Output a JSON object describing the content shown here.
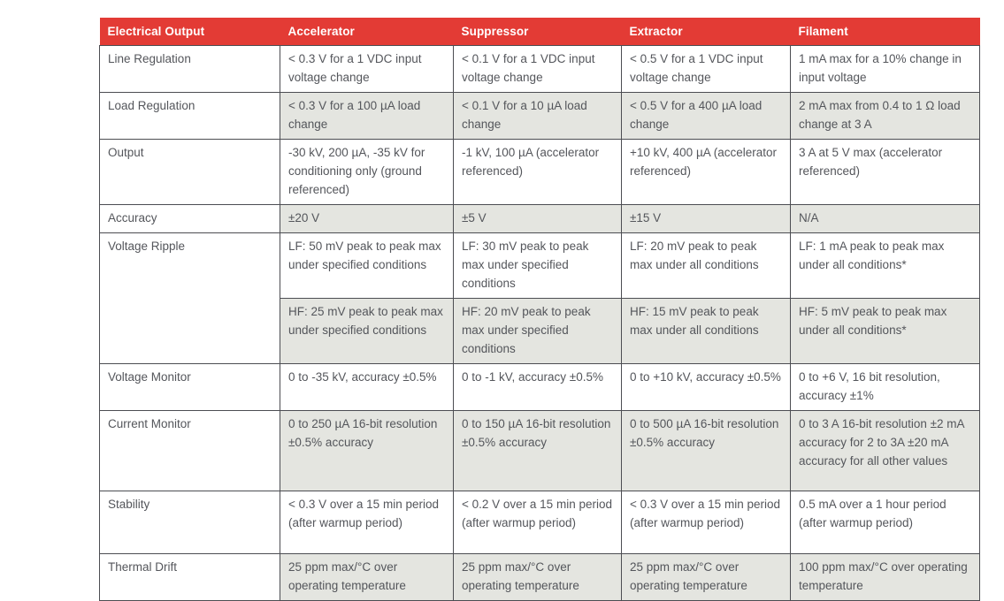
{
  "colors": {
    "header_bg": "#e33b35",
    "header_text": "#ffffff",
    "row_alt_bg": "#e4e5e0",
    "border": "#4c4d52",
    "text": "#54565b"
  },
  "table": {
    "columns": [
      "Electrical Output",
      "Accelerator",
      "Suppressor",
      "Extractor",
      "Filament"
    ],
    "rows": [
      {
        "label": "Line Regulation",
        "cells": [
          "< 0.3 V for a 1 VDC input voltage change",
          "< 0.1 V for a 1 VDC input voltage change",
          "< 0.5 V for a 1 VDC input voltage change",
          "1 mA max for a 10% change in input voltage"
        ]
      },
      {
        "label": "Load Regulation",
        "cells": [
          "< 0.3 V for a 100 µA load change",
          "< 0.1 V for a 10 µA load change",
          "< 0.5 V for a 400 µA load change",
          "2 mA max from 0.4 to 1 Ω load change at 3 A"
        ]
      },
      {
        "label": "Output",
        "cells": [
          "-30 kV, 200 µA, -35 kV for conditioning only (ground referenced)",
          "-1 kV, 100 µA (accelerator referenced)",
          "+10 kV, 400 µA (accelerator referenced)",
          "3 A at 5 V max (accelerator referenced)"
        ]
      },
      {
        "label": "Accuracy",
        "cells": [
          "±20 V",
          "±5 V",
          "±15 V",
          "N/A"
        ]
      },
      {
        "label": "Voltage Ripple",
        "subrows": {
          "lf": [
            "LF: 50 mV peak to peak max under specified conditions",
            "LF: 30 mV peak to peak max under specified conditions",
            "LF: 20 mV peak to peak max under all conditions",
            "LF: 1 mA peak to peak max under all conditions*"
          ],
          "hf": [
            "HF: 25 mV peak to peak max under specified conditions",
            "HF: 20 mV peak to peak max under specified conditions",
            "HF: 15 mV peak to peak max under all conditions",
            "HF: 5 mV peak to peak max under all conditions*"
          ]
        }
      },
      {
        "label": "Voltage Monitor",
        "cells": [
          "0 to -35 kV, accuracy ±0.5%",
          "0 to -1 kV, accuracy ±0.5%",
          "0 to +10 kV, accuracy ±0.5%",
          "0 to +6 V, 16 bit resolution, accuracy ±1%"
        ]
      },
      {
        "label": "Current Monitor",
        "cells": [
          "0 to 250 µA 16-bit resolution ±0.5% accuracy",
          "0 to 150 µA 16-bit resolution ±0.5% accuracy",
          "0 to 500 µA 16-bit resolution ±0.5% accuracy",
          "0 to 3 A 16-bit resolution ±2 mA accuracy for 2 to 3A ±20 mA accuracy for all other values"
        ]
      },
      {
        "label": "Stability",
        "cells": [
          "< 0.3 V over a 15 min period (after warmup period)",
          "< 0.2 V over a 15 min period (after warmup period)",
          "< 0.3 V over a 15 min period (after warmup period)",
          "0.5 mA over a 1 hour period (after warmup period)"
        ]
      },
      {
        "label": "Thermal Drift",
        "cells": [
          "25 ppm max/°C over operating temperature",
          "25 ppm max/°C over operating temperature",
          "25 ppm max/°C over operating temperature",
          "100 ppm max/°C over operating temperature"
        ]
      }
    ]
  }
}
